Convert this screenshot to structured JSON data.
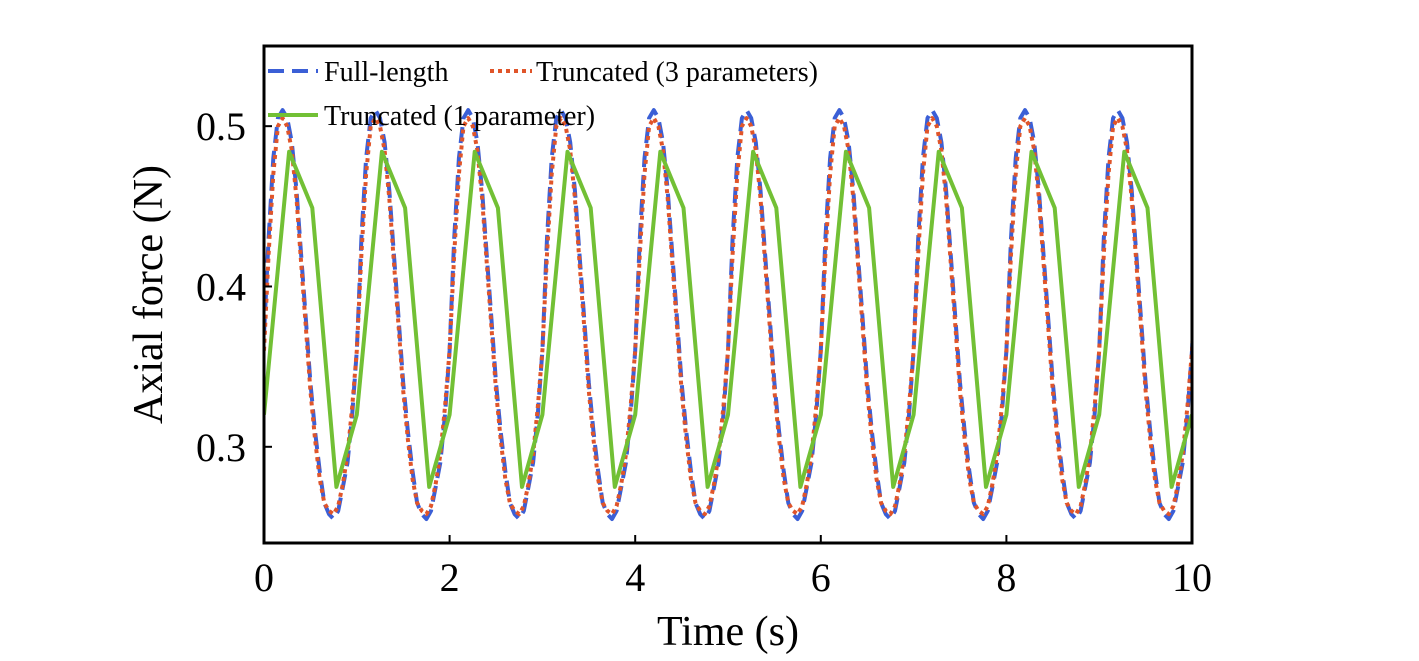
{
  "chart_data": {
    "type": "line",
    "title": "",
    "xlabel": "Time (s)",
    "ylabel": "Axial force (N)",
    "xlim": [
      0,
      10
    ],
    "ylim": [
      0.24,
      0.55
    ],
    "xticks": [
      0,
      2,
      4,
      6,
      8,
      10
    ],
    "yticks": [
      0.3,
      0.4,
      0.5
    ],
    "xtick_labels": [
      "0",
      "2",
      "4",
      "6",
      "8",
      "10"
    ],
    "ytick_labels": [
      "0.3",
      "0.4",
      "0.5"
    ],
    "grid": false,
    "legend_position": "top-left",
    "series": [
      {
        "name": "Full-length",
        "color": "#3b5fd6",
        "style": "dashed",
        "period": 1.0,
        "x": [
          0,
          0.05,
          0.1,
          0.15,
          0.2,
          0.25,
          0.3,
          0.35,
          0.4,
          0.45,
          0.5,
          0.55,
          0.6,
          0.65,
          0.7,
          0.75,
          0.8,
          0.85,
          0.9,
          0.95,
          1.0
        ],
        "values": [
          0.37,
          0.43,
          0.48,
          0.505,
          0.51,
          0.505,
          0.49,
          0.46,
          0.42,
          0.38,
          0.34,
          0.31,
          0.285,
          0.265,
          0.258,
          0.255,
          0.26,
          0.275,
          0.29,
          0.32,
          0.36
        ]
      },
      {
        "name": "Truncated (3 parameters)",
        "color": "#e0552a",
        "style": "dotted",
        "period": 1.0,
        "x": [
          0,
          0.05,
          0.1,
          0.15,
          0.2,
          0.25,
          0.3,
          0.35,
          0.4,
          0.45,
          0.5,
          0.55,
          0.6,
          0.65,
          0.7,
          0.75,
          0.8,
          0.85,
          0.9,
          0.95,
          1.0
        ],
        "values": [
          0.36,
          0.42,
          0.47,
          0.5,
          0.505,
          0.5,
          0.485,
          0.455,
          0.415,
          0.375,
          0.335,
          0.305,
          0.28,
          0.265,
          0.26,
          0.258,
          0.263,
          0.277,
          0.295,
          0.325,
          0.36
        ]
      },
      {
        "name": "Truncated (1 parameter)",
        "color": "#72c035",
        "style": "solid",
        "period": 1.0,
        "x": [
          0,
          0.27,
          0.52,
          0.78,
          1.0
        ],
        "values": [
          0.32,
          0.484,
          0.449,
          0.275,
          0.32
        ]
      }
    ]
  }
}
